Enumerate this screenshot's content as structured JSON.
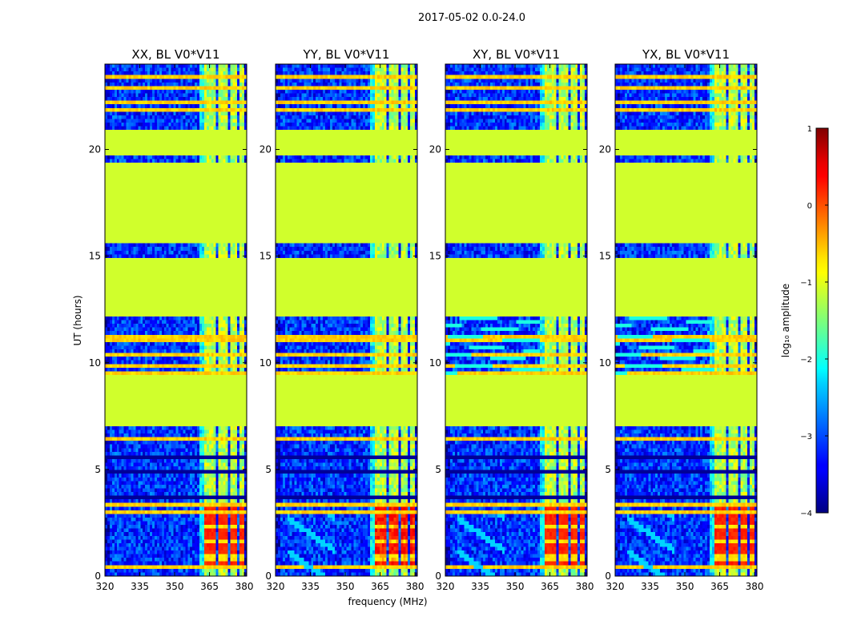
{
  "chart_data": {
    "type": "heatmap",
    "suptitle": "2017-05-02 0.0-24.0",
    "xlabel": "frequency (MHz)",
    "ylabel": "UT (hours)",
    "xlim": [
      320,
      381
    ],
    "ylim": [
      0,
      24
    ],
    "xticks": [
      "320",
      "335",
      "350",
      "365",
      "380"
    ],
    "xtick_values": [
      320,
      335,
      350,
      365,
      380
    ],
    "yticks": [
      "0",
      "5",
      "10",
      "15",
      "20"
    ],
    "ytick_values": [
      0,
      5,
      10,
      15,
      20
    ],
    "panels": [
      {
        "title": "XX, BL V0*V11",
        "polarization": "XX"
      },
      {
        "title": "YY, BL V0*V11",
        "polarization": "YY"
      },
      {
        "title": "XY, BL V0*V11",
        "polarization": "XY"
      },
      {
        "title": "YX, BL V0*V11",
        "polarization": "YX"
      }
    ],
    "flagged_bands_ut": [
      [
        7.05,
        9.35
      ],
      [
        12.25,
        15.0
      ],
      [
        15.55,
        19.4
      ],
      [
        19.75,
        20.85
      ]
    ],
    "flagged_level": -1.1,
    "bright_rfi_ut": [
      [
        14.95,
        15.45
      ]
    ],
    "bright_channels_mhz": [
      [
        363,
        368
      ],
      [
        369,
        373
      ],
      [
        374,
        377
      ],
      [
        378,
        380
      ]
    ],
    "colorbar": {
      "label": "log₁₀ amplitude",
      "range": [
        -4,
        1
      ],
      "ticks": [
        "1",
        "0",
        "−1",
        "−2",
        "−3",
        "−4"
      ],
      "tick_values": [
        1,
        0,
        -1,
        -2,
        -3,
        -4
      ],
      "colormap": "jet"
    }
  }
}
